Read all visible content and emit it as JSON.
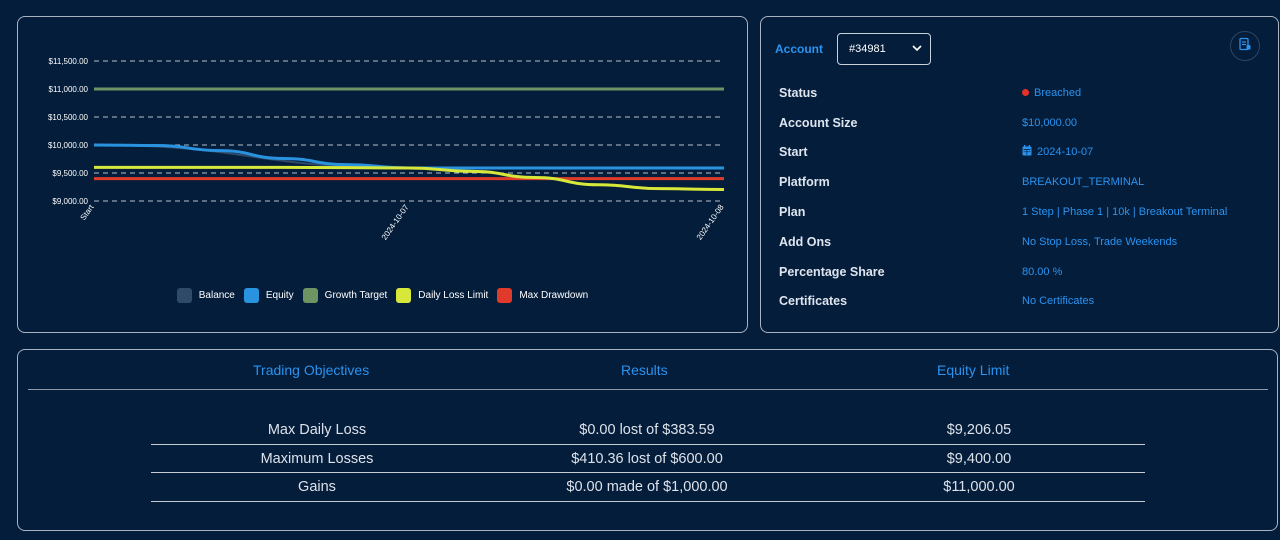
{
  "chart_data": {
    "type": "line",
    "x_labels": [
      "Start",
      "2024-10-07",
      "2024-10-08"
    ],
    "y_ticks": [
      "$9,000.00",
      "$9,500.00",
      "$10,000.00",
      "$10,500.00",
      "$11,000.00",
      "$11,500.00"
    ],
    "ylim": [
      9000,
      11500
    ],
    "grid": "horizontal dashed",
    "legend_position": "bottom",
    "series": [
      {
        "name": "Balance",
        "color": "#2e4a68",
        "x": [
          0,
          0.5,
          1
        ],
        "values": [
          10000,
          9590,
          9590
        ]
      },
      {
        "name": "Equity",
        "color": "#2a93e0",
        "x": [
          0,
          0.1,
          0.2,
          0.3,
          0.4,
          0.5,
          0.6,
          0.7,
          0.8,
          0.9,
          1
        ],
        "values": [
          10000,
          9990,
          9900,
          9760,
          9650,
          9590,
          9590,
          9590,
          9590,
          9590,
          9590
        ]
      },
      {
        "name": "Growth Target",
        "color": "#6e9464",
        "x": [
          0,
          1
        ],
        "values": [
          11000,
          11000
        ]
      },
      {
        "name": "Daily Loss Limit",
        "color": "#d8e83a",
        "x": [
          0,
          0.3,
          0.5,
          0.6,
          0.7,
          0.8,
          0.9,
          1
        ],
        "values": [
          9600,
          9600,
          9590,
          9530,
          9420,
          9290,
          9220,
          9206
        ]
      },
      {
        "name": "Max Drawdown",
        "color": "#e03a2a",
        "x": [
          0,
          1
        ],
        "values": [
          9400,
          9400
        ]
      }
    ]
  },
  "account": {
    "label": "Account",
    "selected": "#34981",
    "doc_icon": "document-icon"
  },
  "info": [
    {
      "key": "Status",
      "value": "Breached",
      "icon": "status-dot"
    },
    {
      "key": "Account Size",
      "value": "$10,000.00"
    },
    {
      "key": "Start",
      "value": "2024-10-07",
      "icon": "calendar-icon"
    },
    {
      "key": "Platform",
      "value": "BREAKOUT_TERMINAL"
    },
    {
      "key": "Plan",
      "value": "1 Step | Phase 1 | 10k | Breakout Terminal"
    },
    {
      "key": "Add Ons",
      "value": "No Stop Loss, Trade Weekends"
    },
    {
      "key": "Percentage Share",
      "value": "80.00 %"
    },
    {
      "key": "Certificates",
      "value": "No Certificates"
    }
  ],
  "objectives": {
    "headers": [
      "Trading Objectives",
      "Results",
      "Equity Limit"
    ],
    "rows": [
      [
        "Max Daily Loss",
        "$0.00 lost of $383.59",
        "$9,206.05"
      ],
      [
        "Maximum Losses",
        "$410.36 lost of $600.00",
        "$9,400.00"
      ],
      [
        "Gains",
        "$0.00 made of $1,000.00",
        "$11,000.00"
      ]
    ]
  },
  "colors": {
    "background": "#041d3b",
    "accent": "#2a93f0",
    "breached": "#e8302a"
  }
}
